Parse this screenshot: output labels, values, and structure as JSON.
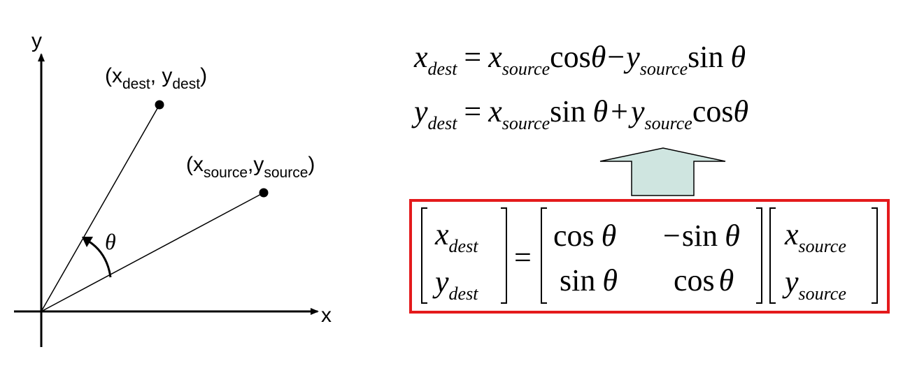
{
  "diagram": {
    "axes": {
      "y_label": "y",
      "x_label": "x"
    },
    "points": {
      "dest": {
        "open": "(x",
        "sub_x": "dest",
        "comma": ", y",
        "sub_y": "dest",
        "close": ")"
      },
      "source": {
        "open": "(x",
        "sub_x": "source",
        "comma": ",y",
        "sub_y": "source",
        "close": ")"
      }
    },
    "angle_label": "θ"
  },
  "equations": {
    "eq1": {
      "lhs": "x",
      "lhs_sub": "dest",
      "equals": "=",
      "t1_var": "x",
      "t1_sub": "source",
      "t1_fn": "cos",
      "t1_arg": "θ",
      "op": "−",
      "t2_var": "y",
      "t2_sub": "source",
      "t2_fn": "sin",
      "t2_arg": "θ"
    },
    "eq2": {
      "lhs": "y",
      "lhs_sub": "dest",
      "equals": "=",
      "t1_var": "x",
      "t1_sub": "source",
      "t1_fn": "sin",
      "t1_arg": "θ",
      "op": "+",
      "t2_var": "y",
      "t2_sub": "source",
      "t2_fn": "cos",
      "t2_arg": "θ"
    }
  },
  "matrix": {
    "lhs": [
      {
        "var": "x",
        "sub": "dest"
      },
      {
        "var": "y",
        "sub": "dest"
      }
    ],
    "equals": "=",
    "rot": {
      "a11_fn": "cos",
      "a11_arg": "θ",
      "a12_sign": "−",
      "a12_fn": "sin",
      "a12_arg": "θ",
      "a21_fn": "sin",
      "a21_arg": "θ",
      "a22_fn": "cos",
      "a22_arg": "θ"
    },
    "rhs": [
      {
        "var": "x",
        "sub": "source"
      },
      {
        "var": "y",
        "sub": "source"
      }
    ]
  },
  "colors": {
    "box_border": "#e41a1c",
    "arrow_fill": "#cfe5e0",
    "arrow_stroke": "#000000",
    "line": "#000000"
  }
}
